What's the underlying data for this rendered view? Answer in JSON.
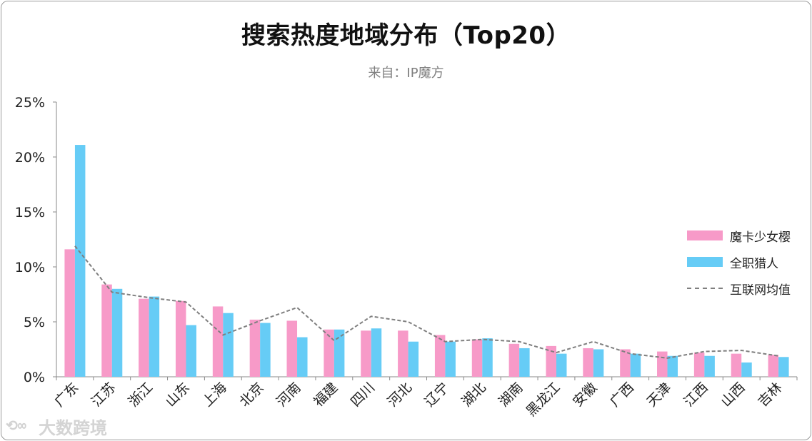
{
  "title": "搜索热度地域分布（Top20）",
  "subtitle": "来自：IP魔方",
  "watermark": "大数跨境",
  "chart_data": {
    "type": "bar",
    "categories": [
      "广东",
      "江苏",
      "浙江",
      "山东",
      "上海",
      "北京",
      "河南",
      "福建",
      "四川",
      "河北",
      "辽宁",
      "湖北",
      "湖南",
      "黑龙江",
      "安徽",
      "广西",
      "天津",
      "江西",
      "山西",
      "吉林"
    ],
    "series": [
      {
        "name": "魔卡少女樱",
        "kind": "bar",
        "color": "#f79ac8",
        "values": [
          11.6,
          8.4,
          7.1,
          6.9,
          6.4,
          5.2,
          5.1,
          4.3,
          4.2,
          4.2,
          3.8,
          3.4,
          3.0,
          2.8,
          2.6,
          2.5,
          2.3,
          2.2,
          2.1,
          2.0
        ]
      },
      {
        "name": "全职猎人",
        "kind": "bar",
        "color": "#66ccf6",
        "values": [
          21.1,
          8.0,
          7.3,
          4.7,
          5.8,
          4.9,
          3.6,
          4.3,
          4.4,
          3.2,
          3.2,
          3.5,
          2.6,
          2.1,
          2.5,
          2.1,
          1.9,
          1.9,
          1.3,
          1.8
        ]
      },
      {
        "name": "互联网均值",
        "kind": "line-dashed",
        "color": "#7f7f7f",
        "values": [
          11.9,
          7.7,
          7.2,
          6.8,
          3.8,
          5.1,
          6.3,
          3.3,
          5.5,
          5.0,
          3.2,
          3.4,
          3.2,
          2.2,
          3.2,
          2.1,
          1.7,
          2.3,
          2.4,
          1.9
        ]
      }
    ],
    "ylim": [
      0,
      25
    ],
    "yticks": [
      "0%",
      "5%",
      "10%",
      "15%",
      "20%",
      "25%"
    ],
    "ytick_values": [
      0,
      5,
      10,
      15,
      20,
      25
    ],
    "legend": "right",
    "grid": false
  }
}
